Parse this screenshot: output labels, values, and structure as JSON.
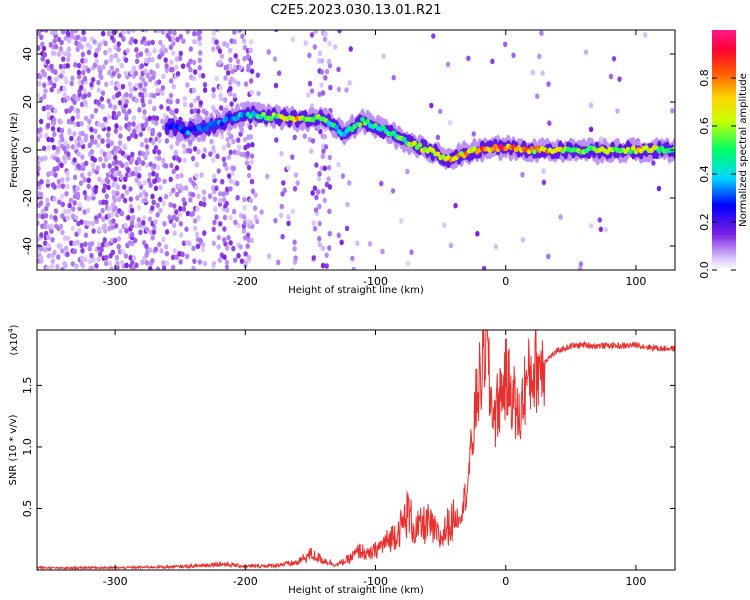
{
  "figure": {
    "title": "C2E5.2023.030.13.01.R21"
  },
  "chart_data": [
    {
      "type": "heatmap",
      "description_source": "spectrogram: frequency vs height, color = normalized spectral amplitude",
      "xlabel": "Height of straight line (km)",
      "ylabel": "Frequency (Hz)",
      "xlim": [
        -360,
        130
      ],
      "ylim": [
        -50,
        50
      ],
      "xticks": [
        -300,
        -200,
        -100,
        0,
        100
      ],
      "xtick_labels": [
        "-300",
        "-200",
        "-100",
        "0",
        "100"
      ],
      "yticks": [
        -40,
        -20,
        0,
        20,
        40
      ],
      "ytick_labels": [
        "-40",
        "-20",
        "0",
        "20",
        "40"
      ],
      "colorbar": {
        "label": "Normalized spectral amplitude",
        "range": [
          0,
          1
        ],
        "ticks": [
          0.0,
          0.2,
          0.4,
          0.6,
          0.8
        ],
        "tick_labels": [
          "0.0",
          "0.2",
          "0.4",
          "0.6",
          "0.8"
        ],
        "colormap": [
          "#ffffff",
          "#d9c2ff",
          "#7b1fe0",
          "#0000ff",
          "#00d5ff",
          "#00ff66",
          "#c8ff00",
          "#ffd400",
          "#ff5a00",
          "#ff0033",
          "#ff1a8c"
        ]
      },
      "ridge": {
        "name": "",
        "points": [
          {
            "x": -260,
            "y": 10,
            "amp": 0.3
          },
          {
            "x": -245,
            "y": 8,
            "amp": 0.35
          },
          {
            "x": -232,
            "y": 9,
            "amp": 0.3
          },
          {
            "x": -200,
            "y": 15,
            "amp": 0.4
          },
          {
            "x": -180,
            "y": 14,
            "amp": 0.6
          },
          {
            "x": -160,
            "y": 13,
            "amp": 0.75
          },
          {
            "x": -140,
            "y": 13,
            "amp": 0.55
          },
          {
            "x": -125,
            "y": 7,
            "amp": 0.4
          },
          {
            "x": -110,
            "y": 12,
            "amp": 0.55
          },
          {
            "x": -100,
            "y": 10,
            "amp": 0.5
          },
          {
            "x": -85,
            "y": 6,
            "amp": 0.55
          },
          {
            "x": -70,
            "y": 2,
            "amp": 0.7
          },
          {
            "x": -55,
            "y": -1,
            "amp": 0.7
          },
          {
            "x": -45,
            "y": -4,
            "amp": 0.75
          },
          {
            "x": -35,
            "y": -2,
            "amp": 0.8
          },
          {
            "x": -20,
            "y": 0,
            "amp": 0.85
          },
          {
            "x": -5,
            "y": 1,
            "amp": 0.9
          },
          {
            "x": 20,
            "y": 0,
            "amp": 0.8
          },
          {
            "x": 60,
            "y": 0,
            "amp": 0.65
          },
          {
            "x": 100,
            "y": 0,
            "amp": 0.7
          },
          {
            "x": 130,
            "y": 0,
            "amp": 0.6
          }
        ]
      }
    },
    {
      "type": "line",
      "xlabel": "Height of straight line (km)",
      "ylabel": "SNR (10 * v/v)",
      "y_multiplier_label": "(x10",
      "y_multiplier_exp": "4",
      "y_multiplier_close": ")",
      "xlim": [
        -360,
        130
      ],
      "ylim": [
        0,
        19500
      ],
      "xticks": [
        -300,
        -200,
        -100,
        0,
        100
      ],
      "xtick_labels": [
        "-300",
        "-200",
        "-100",
        "0",
        "100"
      ],
      "yticks": [
        5000,
        10000,
        15000
      ],
      "ytick_labels": [
        "0.5",
        "1.0",
        "1.5"
      ],
      "series": [
        {
          "name": "",
          "color": "#e8302f",
          "points": [
            [
              -360,
              200
            ],
            [
              -340,
              150
            ],
            [
              -320,
              200
            ],
            [
              -300,
              180
            ],
            [
              -280,
              220
            ],
            [
              -260,
              250
            ],
            [
              -240,
              300
            ],
            [
              -220,
              500
            ],
            [
              -200,
              300
            ],
            [
              -180,
              350
            ],
            [
              -160,
              600
            ],
            [
              -150,
              1300
            ],
            [
              -140,
              800
            ],
            [
              -130,
              400
            ],
            [
              -120,
              900
            ],
            [
              -112,
              1600
            ],
            [
              -105,
              1200
            ],
            [
              -95,
              2000
            ],
            [
              -90,
              2400
            ],
            [
              -80,
              3500
            ],
            [
              -75,
              4800
            ],
            [
              -70,
              3200
            ],
            [
              -60,
              3800
            ],
            [
              -50,
              2500
            ],
            [
              -45,
              3500
            ],
            [
              -40,
              4000
            ],
            [
              -35,
              4500
            ],
            [
              -30,
              6500
            ],
            [
              -25,
              11000
            ],
            [
              -22,
              14500
            ],
            [
              -18,
              16000
            ],
            [
              -15,
              19500
            ],
            [
              -12,
              14000
            ],
            [
              -8,
              12500
            ],
            [
              -5,
              14000
            ],
            [
              0,
              15500
            ],
            [
              5,
              14500
            ],
            [
              10,
              12000
            ],
            [
              15,
              15000
            ],
            [
              20,
              16000
            ],
            [
              30,
              17000
            ],
            [
              40,
              17800
            ],
            [
              50,
              18200
            ],
            [
              60,
              18300
            ],
            [
              70,
              18200
            ],
            [
              80,
              18250
            ],
            [
              90,
              18200
            ],
            [
              100,
              18300
            ],
            [
              110,
              18100
            ],
            [
              120,
              18000
            ],
            [
              130,
              18000
            ]
          ]
        }
      ]
    }
  ]
}
